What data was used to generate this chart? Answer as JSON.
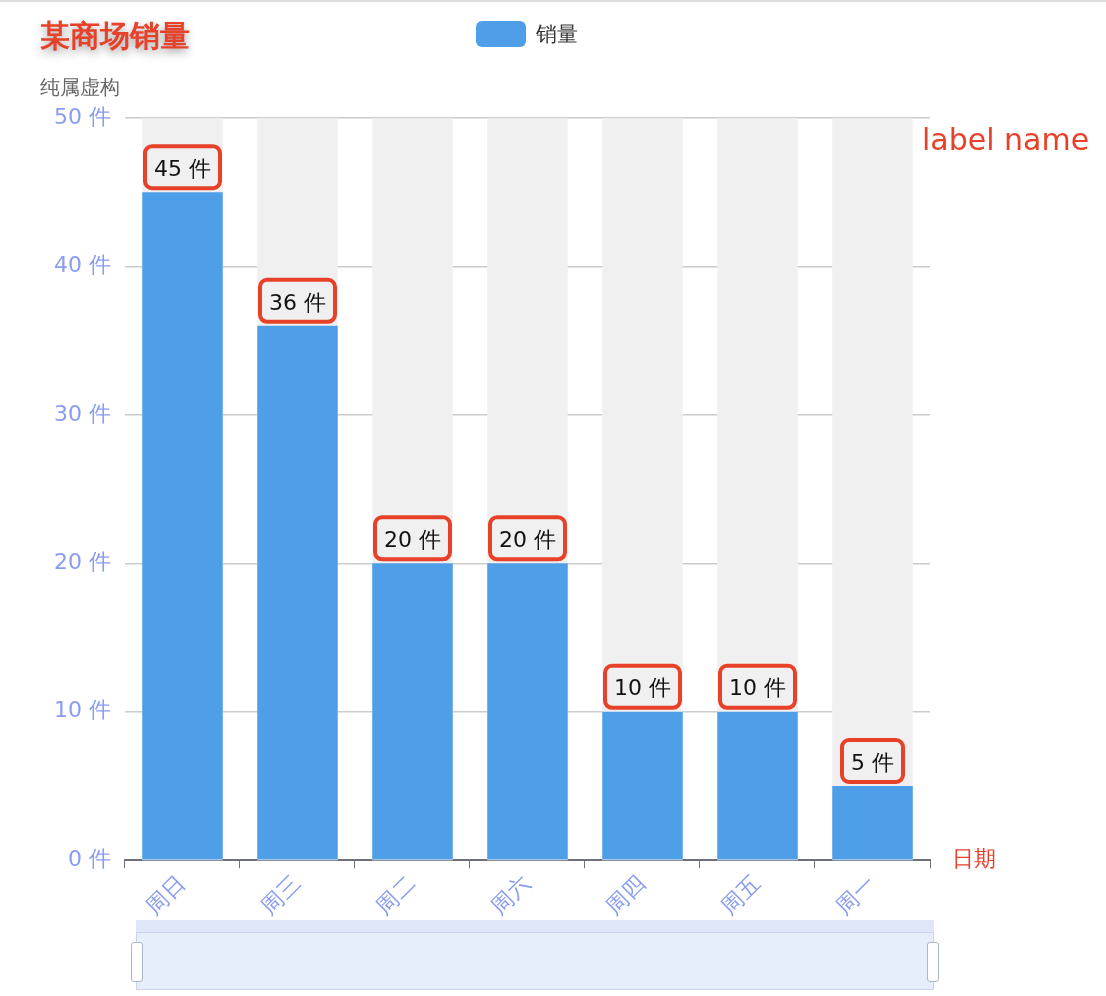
{
  "chart_data": {
    "type": "bar",
    "title": "某商场销量",
    "subtitle": "纯属虚构",
    "xlabel": "日期",
    "annotations": [
      "label name"
    ],
    "categories": [
      "周日",
      "周三",
      "周二",
      "周六",
      "周四",
      "周五",
      "周一"
    ],
    "series": [
      {
        "name": "销量",
        "color": "#4e9fe8",
        "values": [
          45,
          36,
          20,
          20,
          10,
          10,
          5
        ],
        "value_labels": [
          "45 件",
          "36 件",
          "20 件",
          "20 件",
          "10 件",
          "10 件",
          "5 件"
        ]
      }
    ],
    "ylim": [
      0,
      50
    ],
    "yticks": [
      {
        "value": 0,
        "label": "0 件"
      },
      {
        "value": 10,
        "label": "10 件"
      },
      {
        "value": 20,
        "label": "20 件"
      },
      {
        "value": 30,
        "label": "30 件"
      },
      {
        "value": 40,
        "label": "40 件"
      },
      {
        "value": 50,
        "label": "50 件"
      }
    ],
    "grid": "y",
    "legend": "top"
  }
}
